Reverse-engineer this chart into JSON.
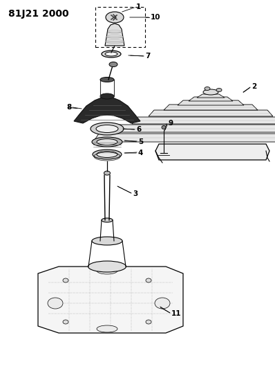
{
  "title": "81J21 2000",
  "bg_color": "#ffffff",
  "line_color": "#000000",
  "label_fontsize": 7.5,
  "title_fontsize": 10
}
